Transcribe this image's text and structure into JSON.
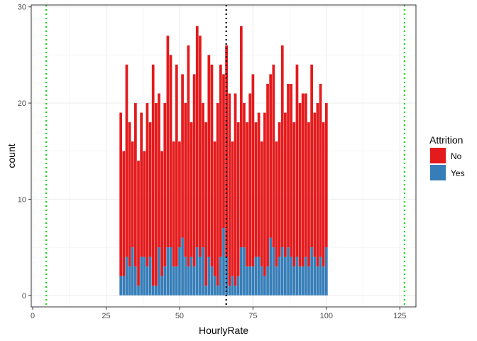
{
  "chart_data": {
    "type": "bar",
    "stacked": true,
    "xlabel": "HourlyRate",
    "ylabel": "count",
    "xlim": [
      -0.5,
      130.5
    ],
    "ylim": [
      -1.2,
      30.2
    ],
    "x_ticks": [
      0,
      25,
      50,
      75,
      100,
      125
    ],
    "y_ticks": [
      0,
      10,
      20,
      30
    ],
    "grid": true,
    "legend": {
      "title": "Attrition",
      "position": "right"
    },
    "x": [
      30,
      31,
      32,
      33,
      34,
      35,
      36,
      37,
      38,
      39,
      40,
      41,
      42,
      43,
      44,
      45,
      46,
      47,
      48,
      49,
      50,
      51,
      52,
      53,
      54,
      55,
      56,
      57,
      58,
      59,
      60,
      61,
      62,
      63,
      64,
      65,
      66,
      67,
      68,
      69,
      70,
      71,
      72,
      73,
      74,
      75,
      76,
      77,
      78,
      79,
      80,
      81,
      82,
      83,
      84,
      85,
      86,
      87,
      88,
      89,
      90,
      91,
      92,
      93,
      94,
      95,
      96,
      97,
      98,
      99,
      100
    ],
    "series": [
      {
        "name": "No",
        "color": "#E41A1C",
        "values": [
          17,
          13,
          20,
          15,
          11,
          17,
          13,
          15,
          11,
          17,
          14,
          23,
          19,
          16,
          13,
          17,
          22,
          20,
          13,
          21,
          11,
          17,
          16,
          23,
          14,
          20,
          23,
          23,
          15,
          17,
          21,
          21,
          14,
          19,
          20,
          16,
          22,
          20,
          14,
          20,
          16,
          23,
          15,
          15,
          18,
          20,
          14,
          15,
          13,
          17,
          19,
          17,
          19,
          13,
          14,
          21,
          15,
          17,
          18,
          15,
          20,
          17,
          18,
          17,
          15,
          19,
          15,
          17,
          18,
          15,
          15
        ]
      },
      {
        "name": "Yes",
        "color": "#377EB8",
        "values": [
          2,
          2,
          4,
          3,
          5,
          3,
          1,
          4,
          4,
          3,
          4,
          1,
          1,
          5,
          2,
          3,
          5,
          5,
          3,
          3,
          5,
          6,
          4,
          3,
          4,
          3,
          5,
          4,
          5,
          1,
          4,
          3,
          2,
          1,
          4,
          7,
          4,
          1,
          2,
          1,
          2,
          5,
          5,
          3,
          3,
          3,
          4,
          4,
          3,
          2,
          3,
          6,
          5,
          3,
          4,
          5,
          4,
          5,
          4,
          3,
          4,
          3,
          3,
          4,
          3,
          5,
          4,
          3,
          4,
          3,
          5
        ]
      }
    ],
    "reference_lines": [
      {
        "x": 4.6,
        "color": "#00DD00",
        "style": "dotted"
      },
      {
        "x": 65.9,
        "color": "#000000",
        "style": "dotted"
      },
      {
        "x": 126.6,
        "color": "#00DD00",
        "style": "dotted"
      }
    ]
  }
}
